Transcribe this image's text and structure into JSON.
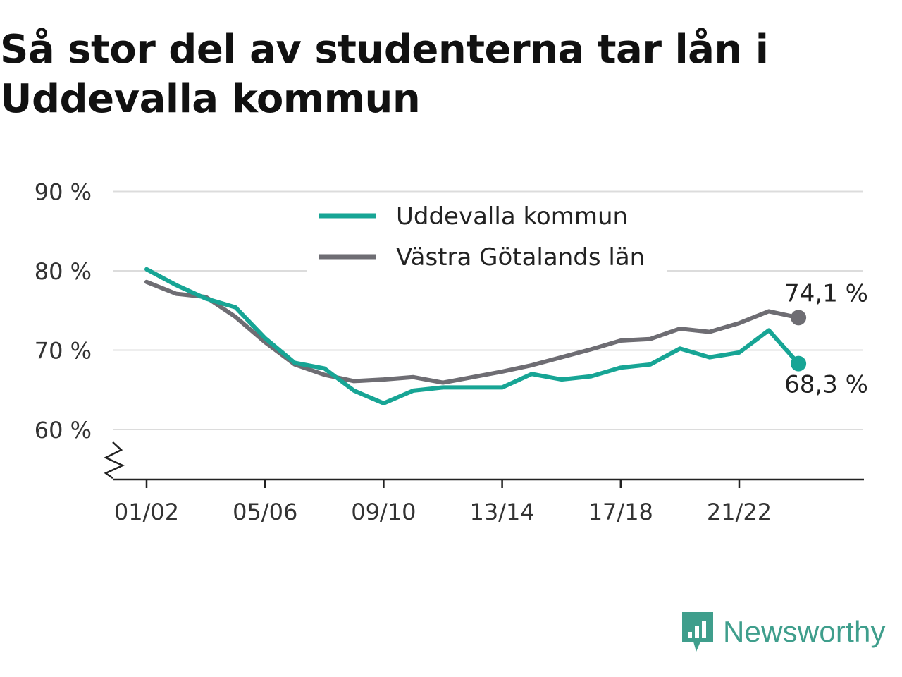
{
  "title": "Så stor del av studenterna tar lån i Uddevalla kommun",
  "brand": {
    "name": "Newsworthy",
    "icon": "newsworthy-logo-icon",
    "color": "#3f9e8c"
  },
  "chart_data": {
    "type": "line",
    "title": "Så stor del av studenterna tar lån i Uddevalla kommun",
    "xlabel": "",
    "ylabel": "",
    "x_tick_labels": [
      "01/02",
      "05/06",
      "09/10",
      "13/14",
      "17/18",
      "21/22"
    ],
    "y_tick_labels": [
      "60 %",
      "70 %",
      "80 %",
      "90 %"
    ],
    "y_ticks": [
      60,
      70,
      80,
      90
    ],
    "ylim": [
      54,
      90
    ],
    "y_axis_break": true,
    "grid": true,
    "legend": "top-center",
    "x": [
      "01/02",
      "02/03",
      "03/04",
      "04/05",
      "05/06",
      "06/07",
      "07/08",
      "08/09",
      "09/10",
      "10/11",
      "11/12",
      "12/13",
      "13/14",
      "14/15",
      "15/16",
      "16/17",
      "17/18",
      "18/19",
      "19/20",
      "20/21",
      "21/22",
      "22/23",
      "23/24"
    ],
    "series": [
      {
        "name": "Uddevalla kommun",
        "color": "#17a595",
        "values": [
          80.2,
          78.2,
          76.5,
          75.4,
          71.5,
          68.4,
          67.7,
          64.9,
          63.3,
          64.9,
          65.3,
          65.3,
          65.3,
          67.0,
          66.3,
          66.7,
          67.8,
          68.2,
          70.2,
          69.1,
          69.7,
          72.5,
          68.3
        ],
        "end_label": "68,3 %"
      },
      {
        "name": "Västra Götalands län",
        "color": "#6e6d73",
        "values": [
          78.6,
          77.1,
          76.7,
          74.2,
          71.0,
          68.2,
          66.9,
          66.1,
          66.3,
          66.6,
          65.9,
          66.6,
          67.3,
          68.1,
          69.1,
          70.1,
          71.2,
          71.4,
          72.7,
          72.3,
          73.4,
          74.9,
          74.1
        ],
        "end_label": "74,1 %"
      }
    ]
  }
}
